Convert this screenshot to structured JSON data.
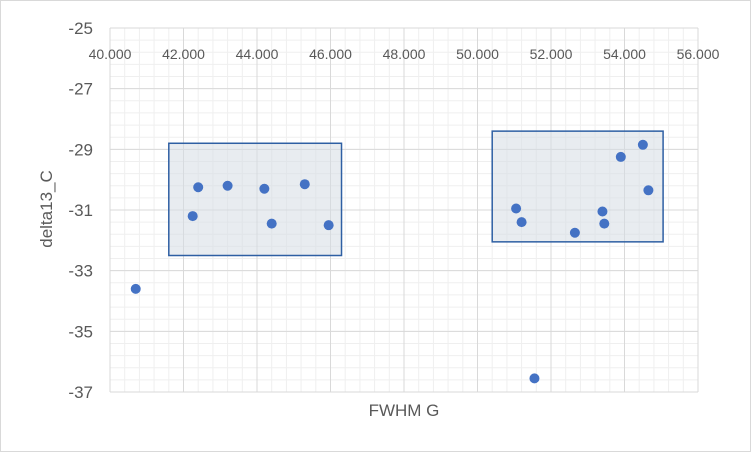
{
  "chart_data": {
    "type": "scatter",
    "title": "",
    "xlabel": "FWHM G",
    "ylabel": "delta13_C",
    "xlim": [
      40,
      56
    ],
    "ylim": [
      -37,
      -25
    ],
    "x_ticks": [
      40,
      42,
      44,
      46,
      48,
      50,
      52,
      54,
      56
    ],
    "x_tick_labels": [
      "40.000",
      "42.000",
      "44.000",
      "46.000",
      "48.000",
      "50.000",
      "52.000",
      "54.000",
      "56.000"
    ],
    "y_ticks": [
      -25,
      -27,
      -29,
      -31,
      -33,
      -35,
      -37
    ],
    "y_tick_labels": [
      "-25",
      "-27",
      "-29",
      "-31",
      "-33",
      "-35",
      "-37"
    ],
    "grid": true,
    "minor_grid": true,
    "legend": "none",
    "colors": {
      "point": "#4472c4",
      "box_fill": "#d6dce4",
      "box_stroke": "#2e5fa3",
      "grid_major": "#d9d9d9",
      "grid_minor": "#efefef"
    },
    "series": [
      {
        "points": [
          {
            "x": 40.7,
            "y": -33.6
          },
          {
            "x": 42.25,
            "y": -31.2
          },
          {
            "x": 42.4,
            "y": -30.25
          },
          {
            "x": 43.2,
            "y": -30.2
          },
          {
            "x": 44.2,
            "y": -30.3
          },
          {
            "x": 44.4,
            "y": -31.45
          },
          {
            "x": 45.3,
            "y": -30.15
          },
          {
            "x": 45.95,
            "y": -31.5
          },
          {
            "x": 51.05,
            "y": -30.95
          },
          {
            "x": 51.2,
            "y": -31.4
          },
          {
            "x": 51.55,
            "y": -36.55
          },
          {
            "x": 52.65,
            "y": -31.75
          },
          {
            "x": 53.4,
            "y": -31.05
          },
          {
            "x": 53.45,
            "y": -31.45
          },
          {
            "x": 53.9,
            "y": -29.25
          },
          {
            "x": 54.5,
            "y": -28.85
          },
          {
            "x": 54.65,
            "y": -30.35
          }
        ]
      }
    ],
    "annotations": [
      {
        "type": "rectangle",
        "x0": 41.6,
        "x1": 46.3,
        "y0": -32.5,
        "y1": -28.8
      },
      {
        "type": "rectangle",
        "x0": 50.4,
        "x1": 55.05,
        "y0": -32.05,
        "y1": -28.4
      }
    ]
  }
}
